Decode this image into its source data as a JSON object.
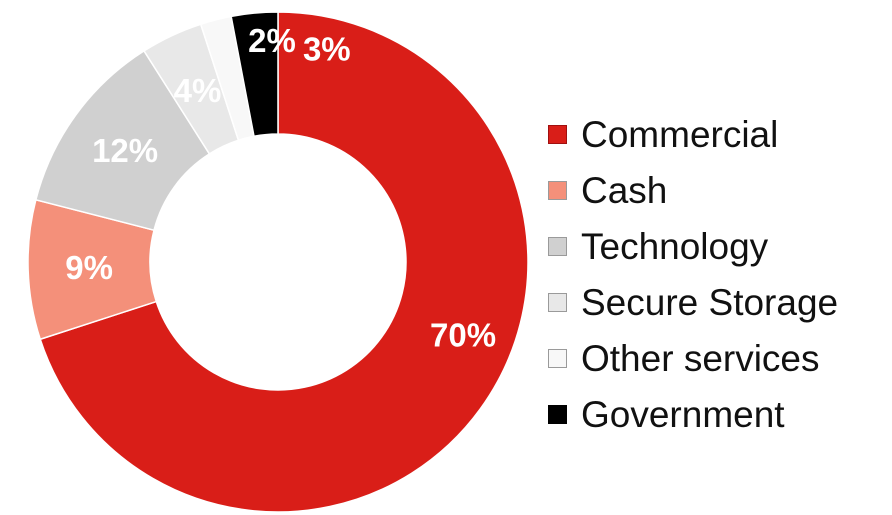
{
  "chart_data": {
    "type": "pie",
    "title": "",
    "categories": [
      "Commercial",
      "Cash",
      "Technology",
      "Secure Storage",
      "Other services",
      "Government"
    ],
    "values": [
      70,
      9,
      12,
      4,
      2,
      3
    ],
    "data_labels": [
      "70%",
      "9%",
      "12%",
      "4%",
      "",
      "3%"
    ],
    "colors": [
      "#d91e18",
      "#f4907a",
      "#d0d0d0",
      "#e8e8e8",
      "#f8f8f8",
      "#000000"
    ],
    "label_colors": [
      "#ffffff",
      "#ffffff",
      "#ffffff",
      "#ffffff",
      "#ffffff",
      "#ffffff"
    ],
    "extra_label": "2%",
    "legend_position": "right",
    "style": "donut"
  }
}
